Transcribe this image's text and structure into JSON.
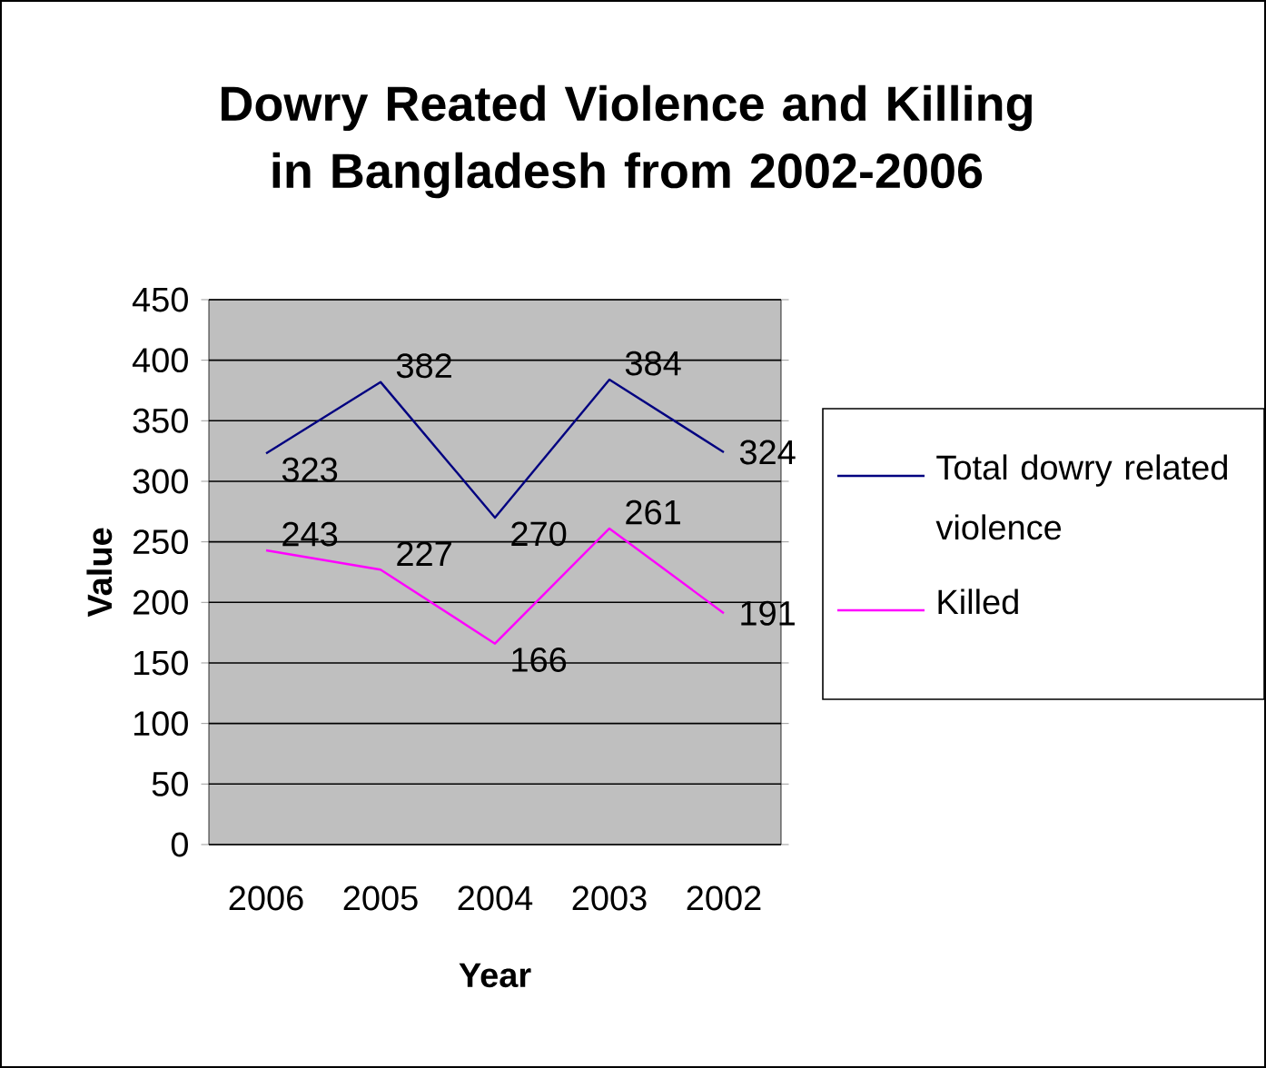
{
  "chart_data": {
    "type": "line",
    "title": "Dowry Reated Violence and Killing in Bangladesh from 2002-2006",
    "xlabel": "Year",
    "ylabel": "Value",
    "categories": [
      "2006",
      "2005",
      "2004",
      "2003",
      "2002"
    ],
    "series": [
      {
        "name": "Total dowry related violence",
        "color": "#000080",
        "values": [
          323,
          382,
          270,
          384,
          324
        ]
      },
      {
        "name": "Killed",
        "color": "#ff00ff",
        "values": [
          243,
          227,
          166,
          261,
          191
        ]
      }
    ],
    "ylim": [
      0,
      450
    ],
    "yticks": [
      0,
      50,
      100,
      150,
      200,
      250,
      300,
      350,
      400,
      450
    ],
    "grid": "y",
    "legend": "right",
    "marker": "none",
    "line_style": "solid",
    "data_labels": true
  }
}
